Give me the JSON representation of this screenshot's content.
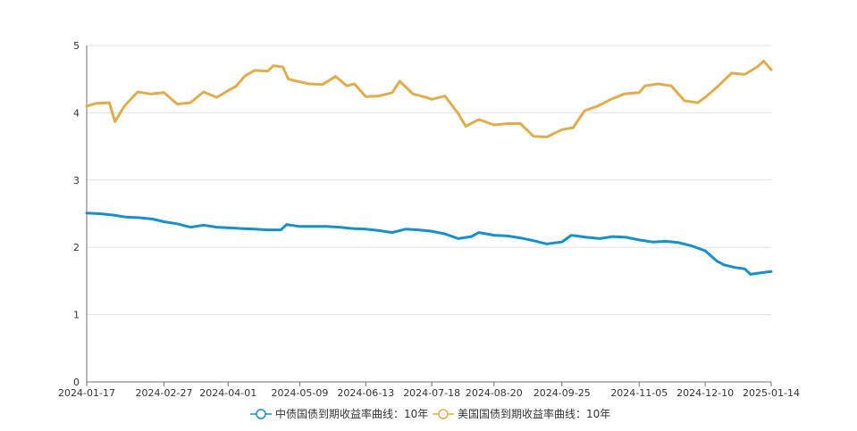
{
  "chart_data": {
    "type": "line",
    "x_ticks": [
      "2024-01-17",
      "2024-02-27",
      "2024-04-01",
      "2024-05-09",
      "2024-06-13",
      "2024-07-18",
      "2024-08-20",
      "2024-09-25",
      "2024-11-05",
      "2024-12-10",
      "2025-01-14"
    ],
    "ylim": [
      0,
      5
    ],
    "y_ticks": [
      "0",
      "1",
      "2",
      "3",
      "4",
      "5"
    ],
    "grid": true,
    "legend_position": "bottom-center",
    "series": [
      {
        "name": "中债国债到期收益率曲线：10年",
        "color": "#1591c9",
        "points": [
          [
            "2024-01-17",
            2.51
          ],
          [
            "2024-01-24",
            2.5
          ],
          [
            "2024-01-31",
            2.48
          ],
          [
            "2024-02-07",
            2.45
          ],
          [
            "2024-02-14",
            2.44
          ],
          [
            "2024-02-21",
            2.42
          ],
          [
            "2024-02-27",
            2.38
          ],
          [
            "2024-03-05",
            2.35
          ],
          [
            "2024-03-12",
            2.3
          ],
          [
            "2024-03-19",
            2.33
          ],
          [
            "2024-03-26",
            2.3
          ],
          [
            "2024-04-01",
            2.29
          ],
          [
            "2024-04-08",
            2.28
          ],
          [
            "2024-04-15",
            2.27
          ],
          [
            "2024-04-22",
            2.26
          ],
          [
            "2024-04-29",
            2.26
          ],
          [
            "2024-05-02",
            2.34
          ],
          [
            "2024-05-09",
            2.31
          ],
          [
            "2024-05-16",
            2.31
          ],
          [
            "2024-05-23",
            2.31
          ],
          [
            "2024-05-30",
            2.3
          ],
          [
            "2024-06-06",
            2.28
          ],
          [
            "2024-06-13",
            2.27
          ],
          [
            "2024-06-20",
            2.25
          ],
          [
            "2024-06-27",
            2.22
          ],
          [
            "2024-07-04",
            2.27
          ],
          [
            "2024-07-11",
            2.26
          ],
          [
            "2024-07-18",
            2.24
          ],
          [
            "2024-07-25",
            2.2
          ],
          [
            "2024-08-01",
            2.13
          ],
          [
            "2024-08-08",
            2.16
          ],
          [
            "2024-08-12",
            2.22
          ],
          [
            "2024-08-20",
            2.18
          ],
          [
            "2024-08-27",
            2.17
          ],
          [
            "2024-09-03",
            2.14
          ],
          [
            "2024-09-10",
            2.1
          ],
          [
            "2024-09-17",
            2.05
          ],
          [
            "2024-09-25",
            2.08
          ],
          [
            "2024-09-30",
            2.18
          ],
          [
            "2024-10-08",
            2.15
          ],
          [
            "2024-10-15",
            2.13
          ],
          [
            "2024-10-22",
            2.16
          ],
          [
            "2024-10-29",
            2.15
          ],
          [
            "2024-11-05",
            2.11
          ],
          [
            "2024-11-12",
            2.08
          ],
          [
            "2024-11-19",
            2.09
          ],
          [
            "2024-11-26",
            2.07
          ],
          [
            "2024-12-03",
            2.02
          ],
          [
            "2024-12-10",
            1.95
          ],
          [
            "2024-12-16",
            1.8
          ],
          [
            "2024-12-20",
            1.74
          ],
          [
            "2024-12-26",
            1.7
          ],
          [
            "2024-12-31",
            1.68
          ],
          [
            "2025-01-03",
            1.6
          ],
          [
            "2025-01-08",
            1.62
          ],
          [
            "2025-01-14",
            1.64
          ]
        ]
      },
      {
        "name": "美国国债到期收益率曲线：10年",
        "color": "#e3ac4a",
        "points": [
          [
            "2024-01-17",
            4.1
          ],
          [
            "2024-01-22",
            4.14
          ],
          [
            "2024-01-29",
            4.15
          ],
          [
            "2024-02-01",
            3.87
          ],
          [
            "2024-02-06",
            4.1
          ],
          [
            "2024-02-13",
            4.31
          ],
          [
            "2024-02-20",
            4.28
          ],
          [
            "2024-02-27",
            4.3
          ],
          [
            "2024-03-05",
            4.13
          ],
          [
            "2024-03-12",
            4.15
          ],
          [
            "2024-03-19",
            4.31
          ],
          [
            "2024-03-26",
            4.23
          ],
          [
            "2024-04-01",
            4.33
          ],
          [
            "2024-04-05",
            4.39
          ],
          [
            "2024-04-10",
            4.55
          ],
          [
            "2024-04-15",
            4.63
          ],
          [
            "2024-04-22",
            4.62
          ],
          [
            "2024-04-25",
            4.7
          ],
          [
            "2024-04-30",
            4.68
          ],
          [
            "2024-05-03",
            4.5
          ],
          [
            "2024-05-09",
            4.46
          ],
          [
            "2024-05-14",
            4.43
          ],
          [
            "2024-05-21",
            4.42
          ],
          [
            "2024-05-28",
            4.54
          ],
          [
            "2024-06-03",
            4.4
          ],
          [
            "2024-06-07",
            4.43
          ],
          [
            "2024-06-13",
            4.24
          ],
          [
            "2024-06-20",
            4.25
          ],
          [
            "2024-06-27",
            4.3
          ],
          [
            "2024-07-01",
            4.47
          ],
          [
            "2024-07-08",
            4.28
          ],
          [
            "2024-07-15",
            4.23
          ],
          [
            "2024-07-18",
            4.2
          ],
          [
            "2024-07-25",
            4.25
          ],
          [
            "2024-08-01",
            3.99
          ],
          [
            "2024-08-05",
            3.8
          ],
          [
            "2024-08-12",
            3.9
          ],
          [
            "2024-08-20",
            3.82
          ],
          [
            "2024-08-27",
            3.84
          ],
          [
            "2024-09-03",
            3.84
          ],
          [
            "2024-09-10",
            3.65
          ],
          [
            "2024-09-17",
            3.64
          ],
          [
            "2024-09-25",
            3.75
          ],
          [
            "2024-10-01",
            3.78
          ],
          [
            "2024-10-07",
            4.03
          ],
          [
            "2024-10-14",
            4.1
          ],
          [
            "2024-10-21",
            4.2
          ],
          [
            "2024-10-28",
            4.28
          ],
          [
            "2024-11-05",
            4.3
          ],
          [
            "2024-11-08",
            4.4
          ],
          [
            "2024-11-15",
            4.43
          ],
          [
            "2024-11-22",
            4.4
          ],
          [
            "2024-11-29",
            4.18
          ],
          [
            "2024-12-06",
            4.15
          ],
          [
            "2024-12-10",
            4.23
          ],
          [
            "2024-12-17",
            4.4
          ],
          [
            "2024-12-24",
            4.59
          ],
          [
            "2024-12-31",
            4.57
          ],
          [
            "2025-01-07",
            4.69
          ],
          [
            "2025-01-10",
            4.77
          ],
          [
            "2025-01-14",
            4.64
          ]
        ]
      }
    ]
  }
}
